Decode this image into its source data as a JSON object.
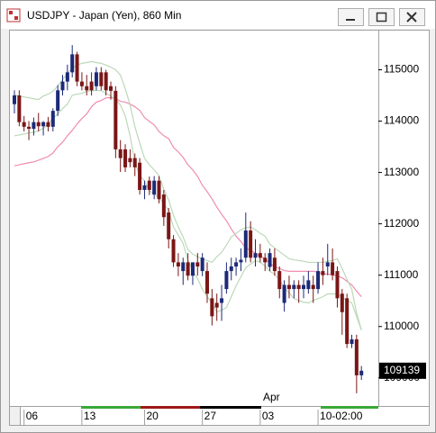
{
  "chart_data": {
    "type": "candlestick",
    "title": "USDJPY - Japan (Yen), 860 Min",
    "categories": [
      null,
      null,
      "06",
      null,
      null,
      null,
      null,
      null,
      null,
      null,
      null,
      null,
      null,
      null,
      "13",
      null,
      null,
      null,
      null,
      null,
      null,
      null,
      null,
      null,
      null,
      null,
      null,
      "20",
      null,
      null,
      null,
      null,
      null,
      null,
      null,
      null,
      null,
      null,
      null,
      "27",
      null,
      null,
      null,
      null,
      null,
      null,
      null,
      null,
      null,
      null,
      null,
      "03",
      null,
      null,
      null,
      null,
      null,
      null,
      null,
      null,
      null,
      null,
      null,
      "10-02:00",
      null,
      null,
      null,
      null,
      null,
      null,
      null,
      null,
      null
    ],
    "x_annotation": "Apr",
    "open": [
      114330,
      114500,
      113980,
      113890,
      113850,
      113980,
      113900,
      113980,
      113890,
      114200,
      114600,
      114770,
      114950,
      115300,
      114770,
      114680,
      114770,
      114680,
      114950,
      114950,
      114680,
      114590,
      113450,
      113450,
      113280,
      113280,
      113190,
      112660,
      112840,
      112570,
      112840,
      112570,
      112220,
      111700,
      111250,
      111080,
      111250,
      110990,
      111250,
      111080,
      111080,
      110550,
      110460,
      110460,
      110730,
      111080,
      111170,
      111250,
      111340,
      111870,
      111340,
      111430,
      111340,
      111160,
      111340,
      111080,
      110460,
      110810,
      110730,
      110810,
      110730,
      110730,
      110810,
      110730,
      111080,
      111170,
      111250,
      111080,
      110640,
      110550,
      109660,
      109750,
      109050
    ],
    "high": [
      114600,
      114600,
      114100,
      114000,
      114070,
      114160,
      114000,
      114080,
      114250,
      114700,
      114900,
      115100,
      115480,
      115350,
      114950,
      114900,
      114950,
      115050,
      115050,
      115000,
      114770,
      114680,
      113630,
      113550,
      113450,
      113370,
      113280,
      112840,
      112920,
      112930,
      112930,
      112660,
      112310,
      111780,
      111430,
      111340,
      111430,
      111250,
      111430,
      111430,
      111250,
      110730,
      110640,
      110810,
      111250,
      111340,
      111340,
      111520,
      112220,
      112050,
      111700,
      111610,
      111430,
      111520,
      111520,
      111170,
      110900,
      110990,
      110900,
      110900,
      110990,
      111080,
      110990,
      111250,
      111340,
      111610,
      111520,
      111170,
      110730,
      110640,
      109840,
      109840,
      109230
    ],
    "low": [
      114150,
      113900,
      113800,
      113630,
      113720,
      113800,
      113720,
      113800,
      113800,
      114100,
      114500,
      114600,
      114850,
      114680,
      114600,
      114500,
      114500,
      114600,
      114600,
      114500,
      114420,
      113280,
      113010,
      113010,
      113100,
      112930,
      112570,
      112480,
      112560,
      112480,
      112400,
      111960,
      111520,
      111160,
      110980,
      110810,
      110900,
      110810,
      110990,
      110980,
      110460,
      110020,
      110110,
      110110,
      110640,
      110900,
      110990,
      111080,
      111250,
      111250,
      111170,
      111250,
      111080,
      111080,
      110990,
      110550,
      110290,
      110550,
      110550,
      110460,
      110550,
      110640,
      110460,
      110640,
      110810,
      111000,
      110900,
      110370,
      109840,
      109580,
      109580,
      108700,
      108960
    ],
    "close": [
      114500,
      113980,
      113890,
      113850,
      113980,
      113900,
      113980,
      113890,
      114200,
      114600,
      114770,
      114950,
      115300,
      114770,
      114680,
      114600,
      114600,
      114950,
      114680,
      114600,
      114590,
      113450,
      113280,
      113100,
      113200,
      113100,
      112660,
      112750,
      112660,
      112840,
      112480,
      112130,
      111700,
      111250,
      111170,
      111250,
      110990,
      111250,
      111170,
      111340,
      110640,
      110200,
      110370,
      110550,
      111080,
      111170,
      111250,
      111300,
      111870,
      111340,
      111430,
      111340,
      111250,
      111430,
      111080,
      110730,
      110810,
      110730,
      110810,
      110730,
      110810,
      110900,
      110730,
      111080,
      111000,
      111250,
      111000,
      110550,
      110280,
      109660,
      109750,
      109050,
      109139
    ],
    "up_color": "#1c2a78",
    "down_color": "#7a1616",
    "overlays": [
      {
        "color": "#f08cb0",
        "values": [
          113130,
          113150,
          113170,
          113190,
          113205,
          113240,
          113275,
          113310,
          113380,
          113500,
          113590,
          113715,
          113820,
          113945,
          114050,
          114140,
          114280,
          114370,
          114400,
          114455,
          114455,
          114440,
          114385,
          114370,
          114330,
          114280,
          114210,
          114070,
          113995,
          113925,
          113800,
          113715,
          113660,
          113490,
          113400,
          113295,
          113150,
          113050,
          112925,
          112750,
          112625,
          112485,
          112325,
          112185,
          112060,
          111900,
          111760,
          111655,
          111530,
          111480,
          111430,
          111360,
          111320,
          111230,
          111165,
          111130,
          111090,
          111075,
          111075,
          111075,
          111075,
          111075,
          111075,
          111060,
          111020,
          111020,
          111005,
          110985,
          110950,
          110880,
          110810,
          110690,
          110580
        ]
      },
      {
        "color": "#bcd9b8",
        "values": [
          114510,
          114490,
          114470,
          114455,
          114435,
          114420,
          114490,
          114525,
          114580,
          114685,
          114810,
          114930,
          115035,
          115090,
          115125,
          115140,
          115160,
          115140,
          115125,
          115090,
          115050,
          115000,
          114895,
          114630,
          114315,
          113890,
          113575,
          113275,
          113150,
          113050,
          112940,
          112675,
          112465,
          112165,
          111940,
          111745,
          111500,
          111410,
          111360,
          111320,
          111285,
          111250,
          111360,
          111445,
          111585,
          111745,
          111815,
          111885,
          111920,
          111940,
          111885,
          111815,
          111760,
          111605,
          111530,
          111460,
          111390,
          111320,
          111300,
          111285,
          111270,
          111250,
          111250,
          111250,
          111250,
          111270,
          111285,
          111320,
          111130,
          110920,
          110725,
          110265,
          109930
        ]
      },
      {
        "color": "#bcd9b8",
        "values": [
          113715,
          113730,
          113750,
          113770,
          113785,
          113805,
          113860,
          113945,
          114050,
          114140,
          114245,
          114330,
          114505,
          114525,
          114540,
          114580,
          114595,
          114595,
          114595,
          114540,
          114490,
          114420,
          114315,
          114100,
          113715,
          113190,
          112940,
          112835,
          112640,
          112590,
          112500,
          112395,
          112255,
          111940,
          111780,
          111620,
          111300,
          111090,
          110935,
          110725,
          110580,
          110460,
          110280,
          110320,
          110370,
          110580,
          110795,
          110970,
          111145,
          111215,
          111285,
          111250,
          111180,
          111075,
          111020,
          110900,
          110760,
          110655,
          110545,
          110510,
          110475,
          110460,
          110510,
          110545,
          110580,
          110635,
          110635,
          110635,
          110565,
          110510,
          110460,
          110195,
          109930
        ]
      }
    ],
    "ylim": [
      108470,
      115780
    ],
    "yticks": [
      109000,
      110000,
      111000,
      112000,
      113000,
      114000,
      115000
    ]
  }
}
